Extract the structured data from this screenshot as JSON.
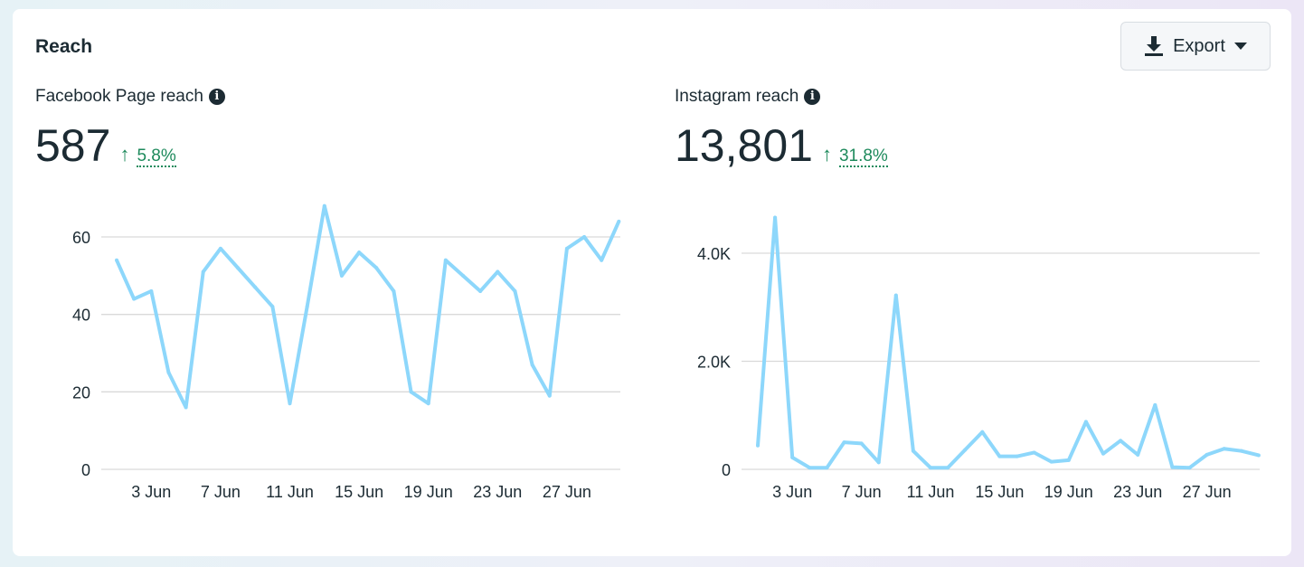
{
  "header": {
    "title": "Reach",
    "export_label": "Export"
  },
  "panels": [
    {
      "title": "Facebook Page reach",
      "value": "587",
      "change": "5.8%",
      "direction": "up"
    },
    {
      "title": "Instagram reach",
      "value": "13,801",
      "change": "31.8%",
      "direction": "up"
    }
  ],
  "colors": {
    "line": "#8dd7fb",
    "positive": "#1e8a5c",
    "grid": "#d9d9d9"
  },
  "chart_data": [
    {
      "type": "line",
      "x": [
        "1 Jun",
        "2 Jun",
        "3 Jun",
        "4 Jun",
        "5 Jun",
        "6 Jun",
        "7 Jun",
        "8 Jun",
        "9 Jun",
        "10 Jun",
        "11 Jun",
        "12 Jun",
        "13 Jun",
        "14 Jun",
        "15 Jun",
        "16 Jun",
        "17 Jun",
        "18 Jun",
        "19 Jun",
        "20 Jun",
        "21 Jun",
        "22 Jun",
        "23 Jun",
        "24 Jun",
        "25 Jun",
        "26 Jun",
        "27 Jun",
        "28 Jun",
        "29 Jun",
        "30 Jun"
      ],
      "values": [
        54,
        44,
        46,
        25,
        16,
        51,
        57,
        52,
        47,
        42,
        17,
        42,
        68,
        50,
        56,
        52,
        46,
        20,
        17,
        54,
        50,
        46,
        51,
        46,
        27,
        19,
        57,
        60,
        54,
        64
      ],
      "xticks": [
        "3 Jun",
        "7 Jun",
        "11 Jun",
        "15 Jun",
        "19 Jun",
        "23 Jun",
        "27 Jun"
      ],
      "yticks": [
        "0",
        "20",
        "40",
        "60"
      ],
      "ytick_values": [
        0,
        20,
        40,
        60
      ],
      "ylim": [
        0,
        70
      ],
      "grid": true
    },
    {
      "type": "line",
      "x": [
        "1 Jun",
        "2 Jun",
        "3 Jun",
        "4 Jun",
        "5 Jun",
        "6 Jun",
        "7 Jun",
        "8 Jun",
        "9 Jun",
        "10 Jun",
        "11 Jun",
        "12 Jun",
        "13 Jun",
        "14 Jun",
        "15 Jun",
        "16 Jun",
        "17 Jun",
        "18 Jun",
        "19 Jun",
        "20 Jun",
        "21 Jun",
        "22 Jun",
        "23 Jun",
        "24 Jun",
        "25 Jun",
        "26 Jun",
        "27 Jun",
        "28 Jun",
        "29 Jun",
        "30 Jun"
      ],
      "values": [
        440,
        4660,
        220,
        30,
        30,
        500,
        480,
        130,
        3220,
        340,
        30,
        30,
        360,
        690,
        240,
        240,
        310,
        140,
        170,
        880,
        290,
        530,
        270,
        1190,
        40,
        30,
        270,
        380,
        340,
        260
      ],
      "xticks": [
        "3 Jun",
        "7 Jun",
        "11 Jun",
        "15 Jun",
        "19 Jun",
        "23 Jun",
        "27 Jun"
      ],
      "yticks": [
        "0",
        "2.0K",
        "4.0K"
      ],
      "ytick_values": [
        0,
        2000,
        4000
      ],
      "ylim": [
        0,
        4800
      ],
      "grid": true
    }
  ]
}
